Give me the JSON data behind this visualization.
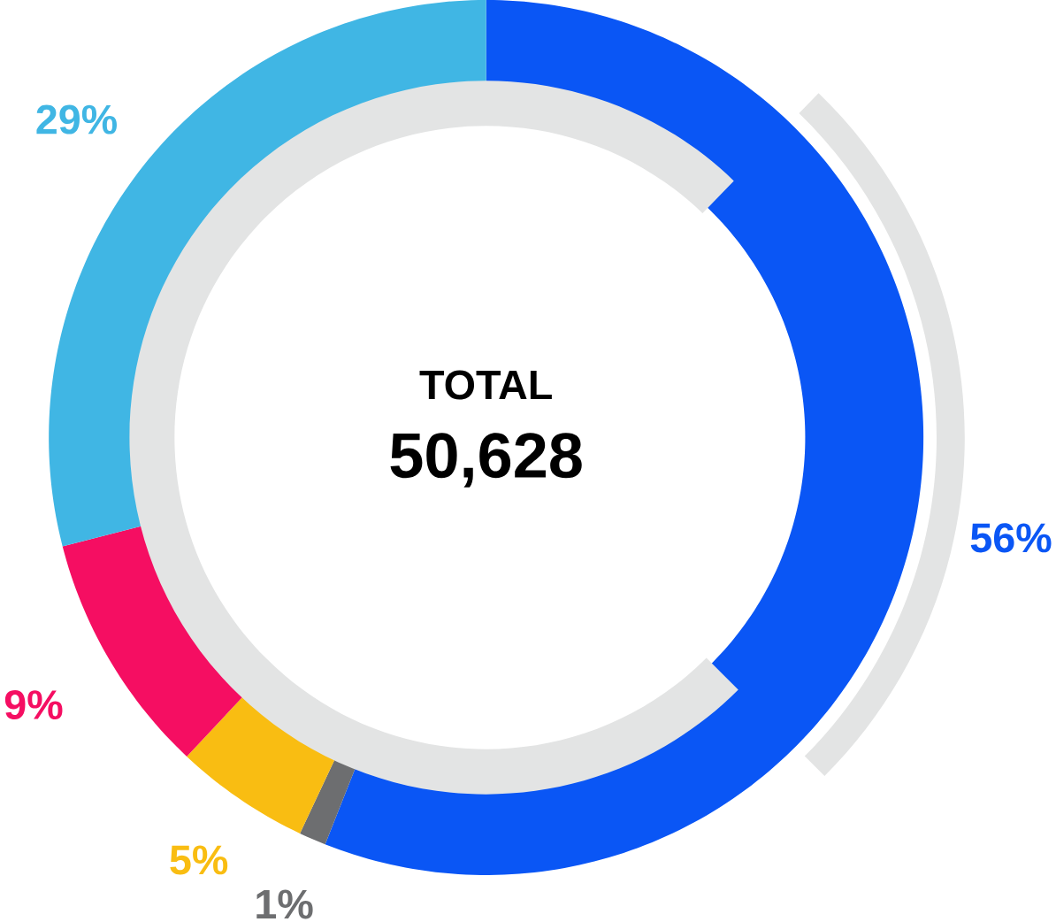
{
  "chart_data": {
    "type": "donut",
    "categories": [
      null,
      null,
      null,
      null,
      null
    ],
    "values": [
      56,
      1,
      5,
      9,
      29
    ],
    "value_labels": [
      "56%",
      "1%",
      "5%",
      "9%",
      "29%"
    ],
    "colors": [
      "#0a56f5",
      "#6d6e70",
      "#f9bd12",
      "#f50e62",
      "#40b6e4"
    ],
    "annotations": [
      "TOTAL",
      "50,628"
    ]
  }
}
